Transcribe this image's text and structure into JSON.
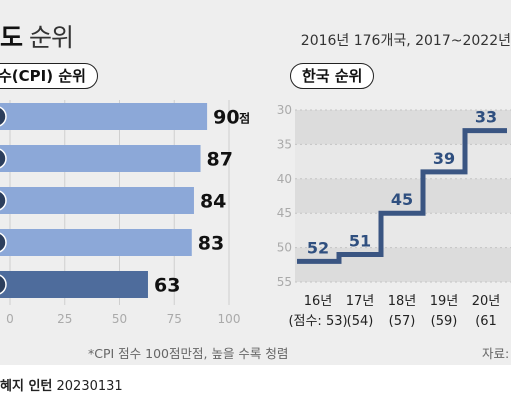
{
  "title_bold": "도",
  "title_rest": "순위",
  "subtitle": "2016년 176개국, 2017~2022년",
  "left_header": "수(CPI) 순위",
  "right_header": "한국 순위",
  "footnote": "*CPI 점수 100점만점, 높을 수록 청렴",
  "source": "자료:",
  "credit_name": "혜지 인턴",
  "credit_date": "20230131",
  "colors": {
    "bar": "#8ca8d8",
    "bar_dark": "#4e6c9c",
    "step_line": "#3a5582",
    "shade_a": "#dcdcdc",
    "shade_b": "#e8e8e8"
  },
  "chart_data": [
    {
      "type": "bar",
      "orientation": "horizontal",
      "categories": [
        "",
        "",
        "",
        "",
        ""
      ],
      "values": [
        90,
        87,
        84,
        83,
        63
      ],
      "value_unit_label": "점",
      "xlim": [
        0,
        100
      ],
      "xticks": [
        "0",
        "25",
        "50",
        "75",
        "100"
      ]
    },
    {
      "type": "line",
      "style": "step",
      "x": [
        "16년",
        "17년",
        "18년",
        "19년",
        "20년"
      ],
      "x_sublabels": [
        "(점수: 53)",
        "(54)",
        "(57)",
        "(59)",
        "(61"
      ],
      "y": [
        52,
        51,
        45,
        39,
        33
      ],
      "ylim": [
        30,
        55
      ],
      "y_inverted": true,
      "yticks": [
        "30",
        "35",
        "40",
        "45",
        "50",
        "55"
      ]
    }
  ]
}
